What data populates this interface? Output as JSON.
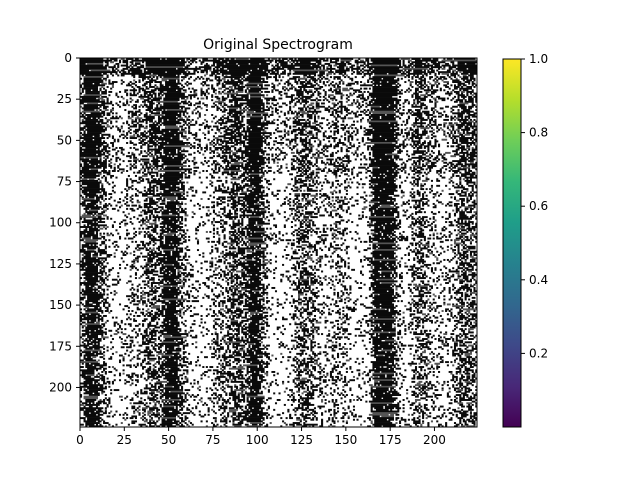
{
  "chart_data": {
    "type": "heatmap",
    "title": "Original Spectrogram",
    "xlabel": "",
    "ylabel": "",
    "x_range": [
      0,
      224
    ],
    "y_range": [
      0,
      224
    ],
    "y_inverted": true,
    "x_ticks": [
      0,
      25,
      50,
      75,
      100,
      125,
      150,
      175,
      200
    ],
    "y_ticks": [
      0,
      25,
      50,
      75,
      100,
      125,
      150,
      175,
      200
    ],
    "grid": false,
    "image_colors": [
      "#000000",
      "#ffffff"
    ],
    "colorbar": {
      "range": [
        0.0,
        1.0
      ],
      "ticks": [
        "0.2",
        "0.4",
        "0.6",
        "0.8",
        "1.0"
      ],
      "tick_values": [
        0.2,
        0.4,
        0.6,
        0.8,
        1.0
      ],
      "colormap": "viridis",
      "colors": [
        "#440154",
        "#482878",
        "#3e4989",
        "#31688e",
        "#26828e",
        "#1f9e89",
        "#35b779",
        "#6ece58",
        "#b5de2b",
        "#fde725"
      ]
    }
  }
}
